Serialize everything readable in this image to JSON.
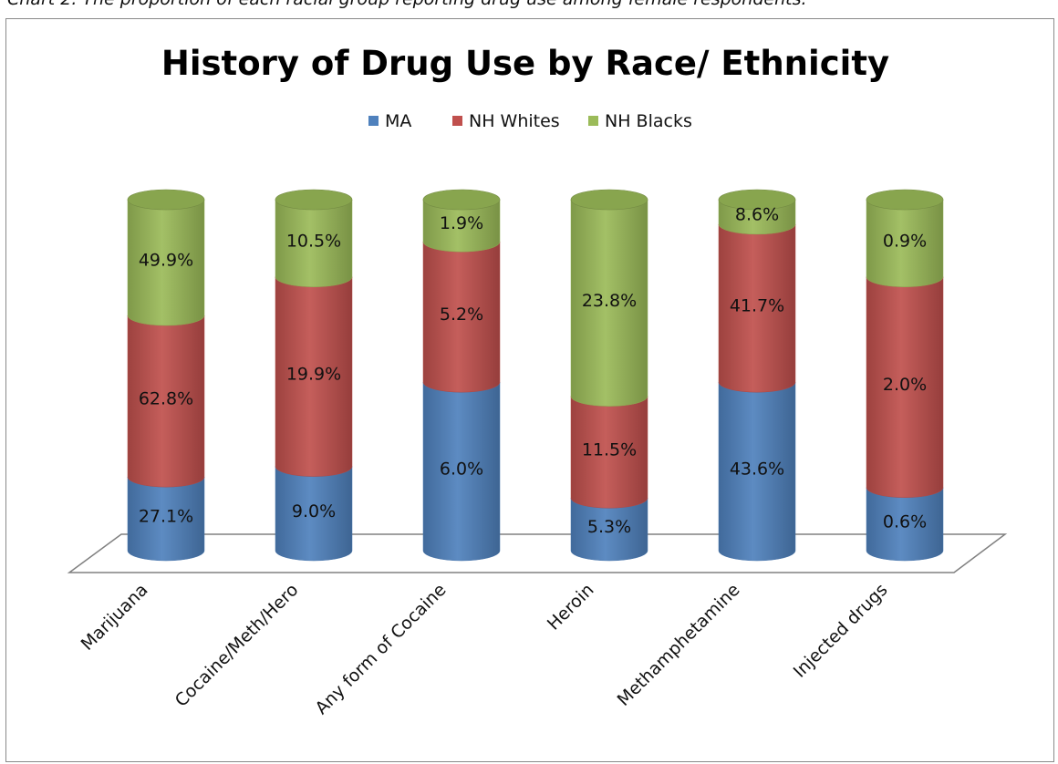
{
  "caption": "Chart 2. The proportion of each racial group reporting drug use among female respondents.",
  "chart_data": {
    "type": "bar",
    "stacked": true,
    "style": "3d-cylinder",
    "title": "History of Drug Use by Race/ Ethnicity",
    "legend_position": "top",
    "categories": [
      "Marijuana",
      "Cocaine/Meth/Hero",
      "Any form of Cocaine",
      "Heroin",
      "Methamphetamine",
      "Injected drugs"
    ],
    "series": [
      {
        "name": "MA",
        "color": "#4f81bd",
        "values": [
          27.1,
          9.0,
          6.0,
          5.3,
          43.6,
          0.6
        ],
        "labels": [
          "27.1%",
          "9.0%",
          "6.0%",
          "5.3%",
          "43.6%",
          "0.6%"
        ]
      },
      {
        "name": "NH Whites",
        "color": "#c0504d",
        "values": [
          62.8,
          19.9,
          5.2,
          11.5,
          41.7,
          2.0
        ],
        "labels": [
          "62.8%",
          "19.9%",
          "5.2%",
          "11.5%",
          "41.7%",
          "2.0%"
        ]
      },
      {
        "name": "NH Blacks",
        "color": "#9bbb59",
        "values": [
          49.9,
          10.5,
          1.9,
          23.8,
          8.6,
          0.9
        ],
        "labels": [
          "49.9%",
          "10.5%",
          "1.9%",
          "23.8%",
          "8.6%",
          "0.9%"
        ]
      }
    ],
    "display_fractions": [
      [
        0.21,
        0.46,
        0.33
      ],
      [
        0.24,
        0.54,
        0.22
      ],
      [
        0.48,
        0.4,
        0.12
      ],
      [
        0.15,
        0.29,
        0.56
      ],
      [
        0.48,
        0.45,
        0.07
      ],
      [
        0.18,
        0.6,
        0.22
      ]
    ]
  }
}
